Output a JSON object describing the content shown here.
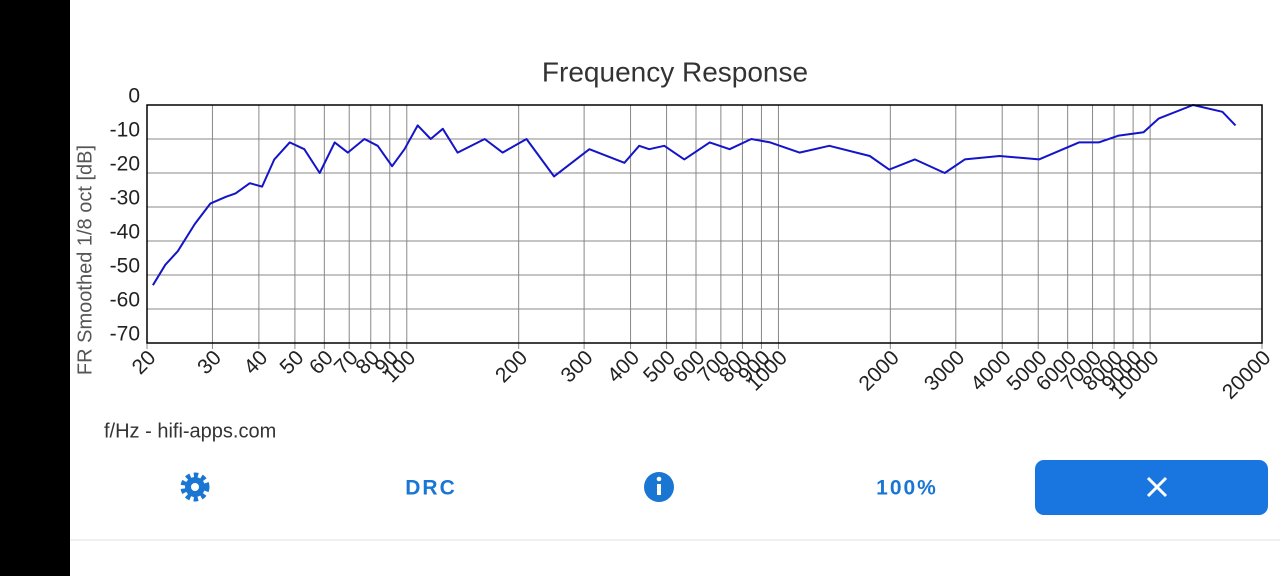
{
  "chart_data": {
    "type": "line",
    "title": "Frequency Response",
    "ylabel": "FR Smoothed 1/8 oct [dB]",
    "xlabel": "f/Hz - hifi-apps.com",
    "xscale": "log",
    "grid": true,
    "xlim": [
      20,
      20000
    ],
    "ylim": [
      -70,
      0
    ],
    "xticks": [
      20,
      30,
      40,
      50,
      60,
      70,
      80,
      90,
      100,
      200,
      300,
      400,
      500,
      600,
      700,
      800,
      900,
      1000,
      2000,
      3000,
      4000,
      5000,
      6000,
      7000,
      8000,
      9000,
      10000,
      20000
    ],
    "yticks": [
      -70,
      -60,
      -50,
      -40,
      -30,
      -20,
      -10,
      0
    ],
    "x": [
      20.75,
      22.4,
      24.2,
      26.9,
      29.6,
      32.6,
      34.6,
      37.8,
      40.8,
      44,
      48.4,
      53,
      58.3,
      64,
      69.4,
      76.9,
      83.5,
      91.3,
      98.6,
      107,
      116,
      125,
      137,
      162,
      181,
      210,
      249,
      310,
      385,
      422,
      449,
      493,
      558,
      653,
      739,
      845,
      950,
      1139,
      1370,
      1761,
      1986,
      2327,
      2801,
      3173,
      3935,
      5025,
      6435,
      7275,
      8230,
      9605,
      10540,
      13050,
      15650,
      16970
    ],
    "series": [
      {
        "color": "#1414c8",
        "values": [
          -53,
          -47,
          -43,
          -35,
          -29,
          -27,
          -26,
          -23,
          -24,
          -16,
          -11,
          -13,
          -20,
          -11,
          -14,
          -10,
          -12,
          -18,
          -13,
          -6,
          -10,
          -7,
          -14,
          -10,
          -14,
          -10,
          -21,
          -13,
          -17,
          -12,
          -13,
          -12,
          -16,
          -11,
          -13,
          -10,
          -11,
          -14,
          -12,
          -15,
          -19,
          -16,
          -20,
          -16,
          -15,
          -16,
          -11,
          -11,
          -9,
          -8,
          -4,
          0,
          -2,
          -6
        ]
      }
    ]
  },
  "toolbar": {
    "drc": "DRC",
    "zoom": "100%"
  }
}
